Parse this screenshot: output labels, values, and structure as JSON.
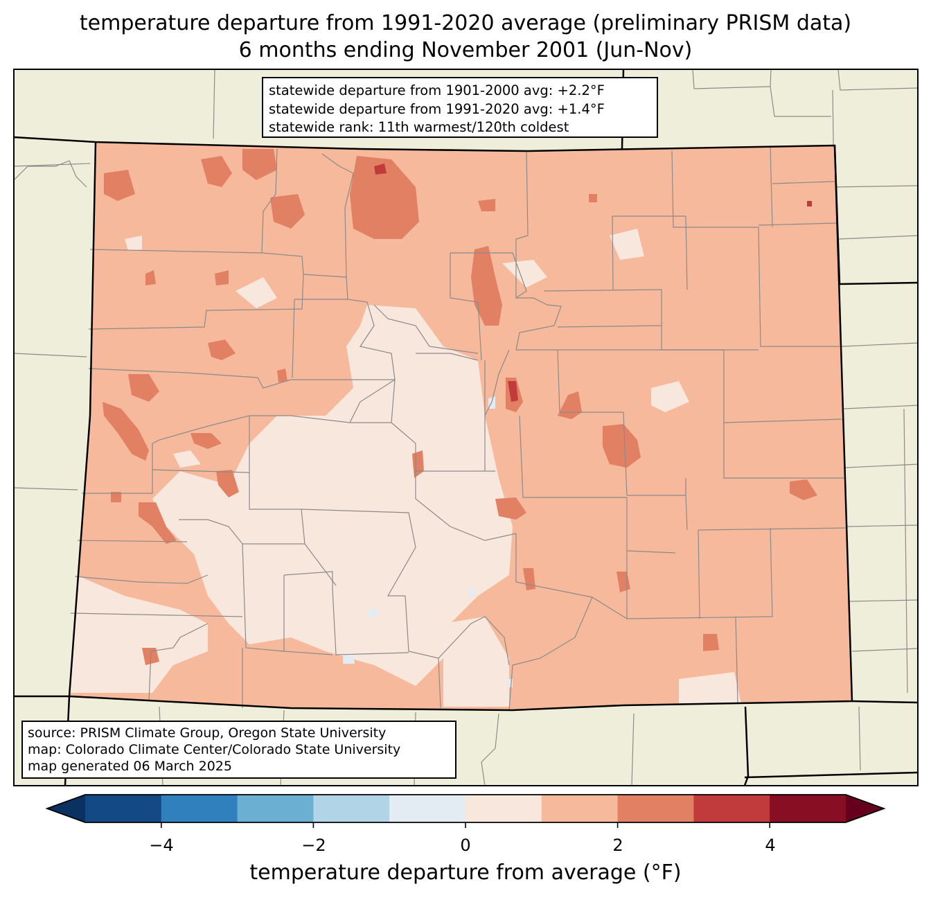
{
  "title": {
    "line1": "temperature departure from 1991-2020 average (preliminary PRISM data)",
    "line2": "6 months ending November 2001 (Jun-Nov)"
  },
  "stats": {
    "line1": "statewide departure from 1901-2000 avg: +2.2°F",
    "line2": "statewide departure from 1991-2020 avg: +1.4°F",
    "line3": "statewide rank: 11th warmest/120th coldest"
  },
  "source": {
    "line1": "source: PRISM Climate Group, Oregon State University",
    "line2": "map: Colorado Climate Center/Colorado State University",
    "line3": "map generated 06 March 2025"
  },
  "colorbar": {
    "label": "temperature departure from average (°F)",
    "bins": [
      -5,
      -4,
      -3,
      -2,
      -1,
      0,
      1,
      2,
      3,
      4,
      5
    ],
    "ticks": [
      "−4",
      "−2",
      "0",
      "2",
      "4"
    ],
    "colors": [
      "#0a3162",
      "#134a86",
      "#3080bd",
      "#6bafd2",
      "#b1d5e7",
      "#e3ecf3",
      "#f8e7dd",
      "#f6b99c",
      "#e28064",
      "#c13b3c",
      "#880e24",
      "#67001f"
    ]
  },
  "map_colors": {
    "land": "#efeedb",
    "state_border": "#000000",
    "county_border": "#8a8a8a",
    "bin_0_1": "#f8e7dd",
    "bin_1_2": "#f6b99c",
    "bin_2_3": "#e28064",
    "bin_3_4": "#c13b3c",
    "bin_neg1_0": "#e3ecf3"
  }
}
